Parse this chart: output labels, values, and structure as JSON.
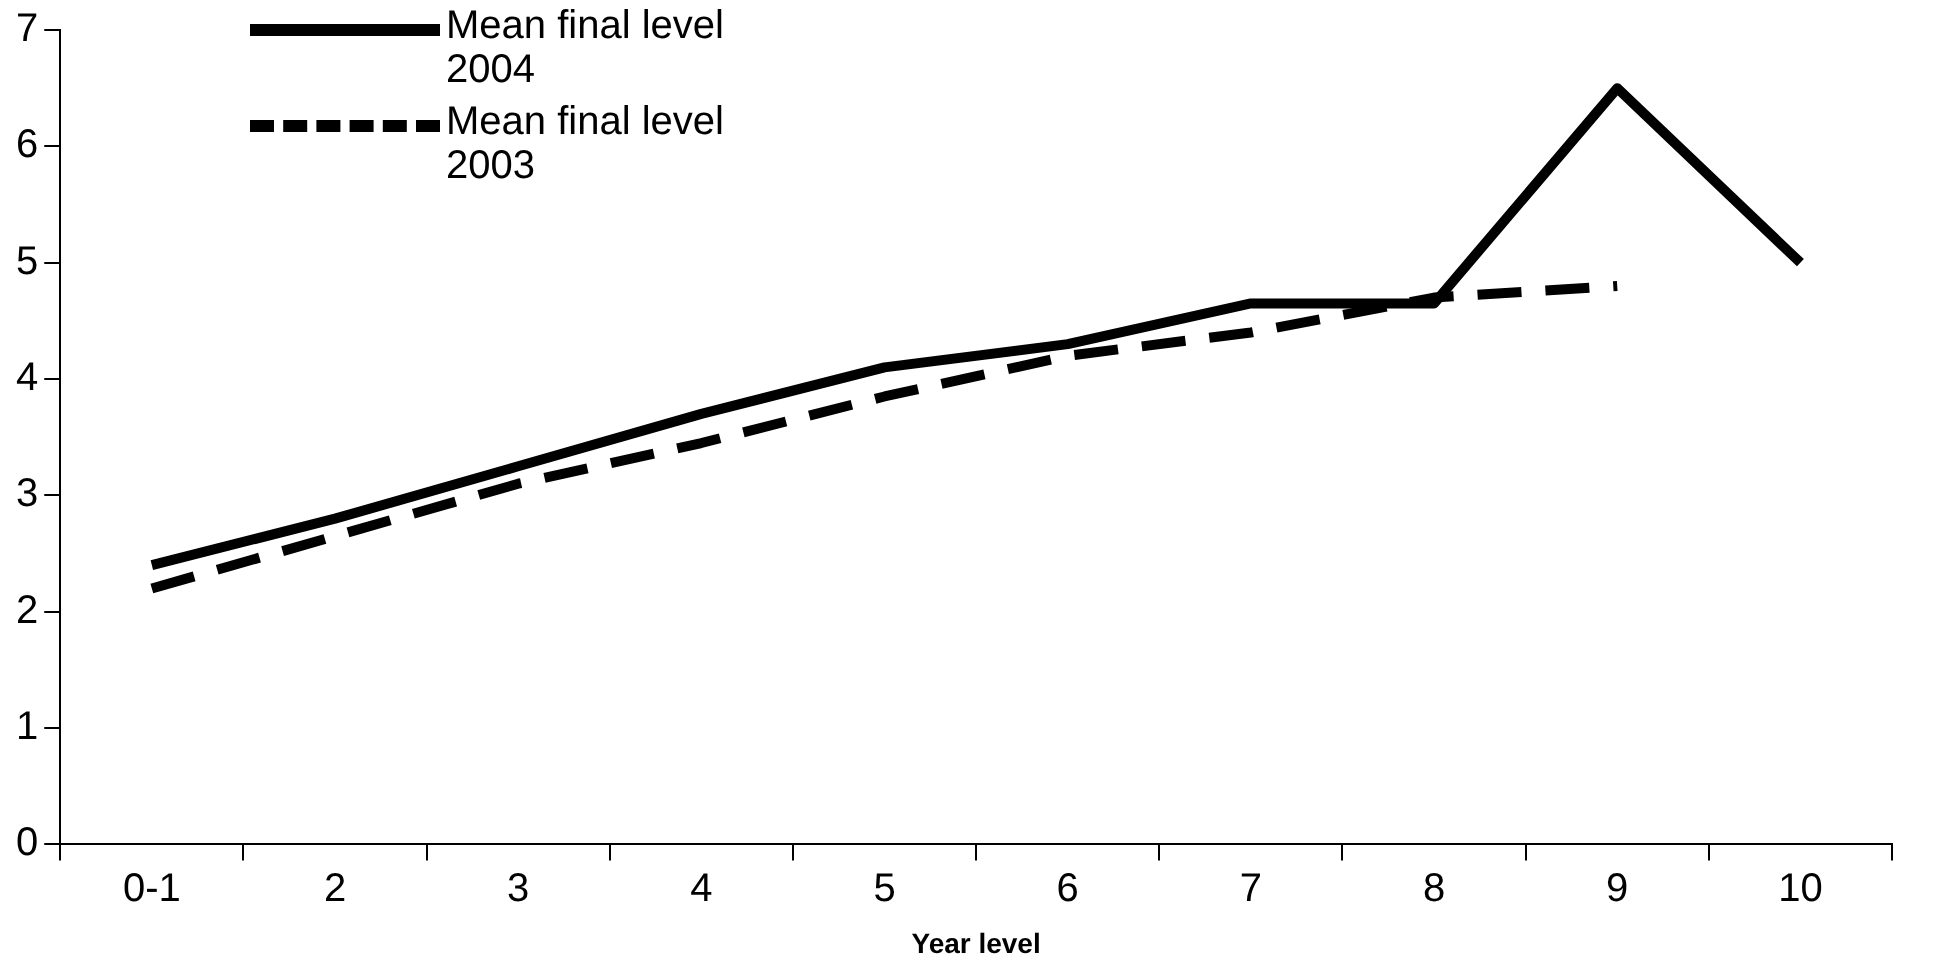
{
  "chart_data": {
    "type": "line",
    "xlabel": "Year level",
    "categories": [
      "0-1",
      "2",
      "3",
      "4",
      "5",
      "6",
      "7",
      "8",
      "9",
      "10"
    ],
    "series": [
      {
        "name": "Mean final level 2004",
        "color": "#000000",
        "line_style": "solid",
        "values": [
          2.4,
          2.8,
          3.25,
          3.7,
          4.1,
          4.3,
          4.65,
          4.65,
          6.5,
          5.0
        ]
      },
      {
        "name": "Mean final level 2003",
        "color": "#000000",
        "line_style": "dashed",
        "values": [
          2.2,
          2.65,
          3.1,
          3.45,
          3.85,
          4.2,
          4.4,
          4.7,
          4.8,
          null
        ]
      }
    ],
    "ylim": [
      0,
      7
    ],
    "yticks": [
      0,
      1,
      2,
      3,
      4,
      5,
      6,
      7
    ],
    "grid": false,
    "legend": "top left",
    "marker": "none"
  }
}
